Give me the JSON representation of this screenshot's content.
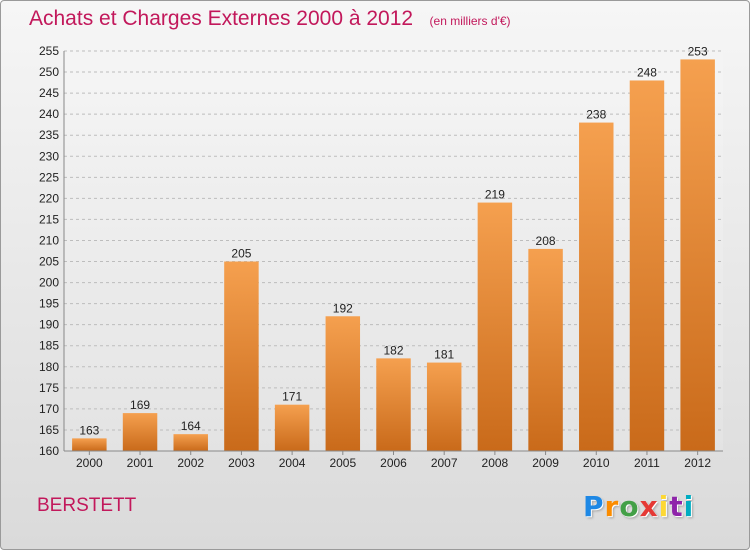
{
  "title": "Achats et Charges Externes 2000 à 2012",
  "unit_note": "(en milliers d'€)",
  "commune": "BERSTETT",
  "brand": {
    "letters": [
      "P",
      "r",
      "o",
      "x",
      "i",
      "t",
      "i"
    ],
    "colors": [
      "#1e88e5",
      "#fb8c00",
      "#43a047",
      "#e53935",
      "#fdd835",
      "#8e24aa",
      "#00acc1"
    ]
  },
  "colors": {
    "accent": "#c2185b",
    "bar": "#e8872f",
    "bar_dark": "#c96a1a"
  },
  "chart_data": {
    "type": "bar",
    "categories": [
      "2000",
      "2001",
      "2002",
      "2003",
      "2004",
      "2005",
      "2006",
      "2007",
      "2008",
      "2009",
      "2010",
      "2011",
      "2012"
    ],
    "values": [
      163,
      169,
      164,
      205,
      171,
      192,
      182,
      181,
      219,
      208,
      238,
      248,
      253
    ],
    "ylim": [
      160,
      255
    ],
    "yticks": [
      160,
      165,
      170,
      175,
      180,
      185,
      190,
      195,
      200,
      205,
      210,
      215,
      220,
      225,
      230,
      235,
      240,
      245,
      250,
      255
    ],
    "grid": true
  }
}
